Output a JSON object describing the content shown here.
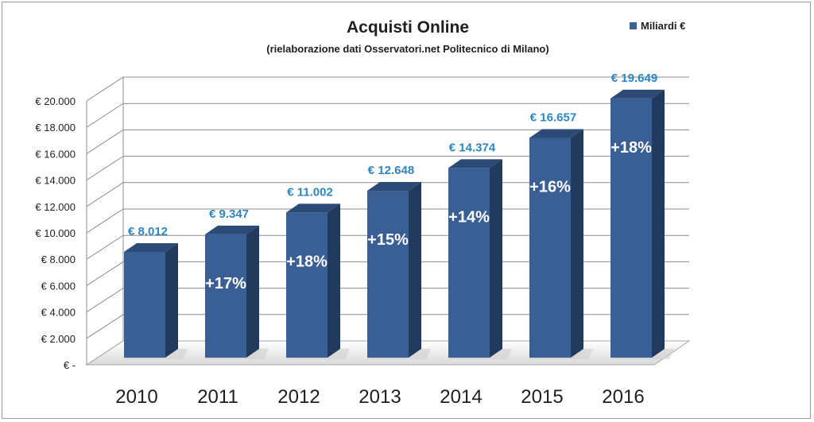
{
  "chart_data": {
    "type": "bar",
    "title": "Acquisti Online",
    "subtitle": "(rielaborazione dati  Osservatori.net Politecnico di Milano)",
    "categories": [
      "2010",
      "2011",
      "2012",
      "2013",
      "2014",
      "2015",
      "2016"
    ],
    "series": [
      {
        "name": "Miliardi €",
        "values": [
          8012,
          9347,
          11002,
          12648,
          14374,
          16657,
          19649
        ],
        "color": "#3a5f95"
      }
    ],
    "value_labels": [
      "€ 8.012",
      "€ 9.347",
      "€ 11.002",
      "€ 12.648",
      "€ 14.374",
      "€ 16.657",
      "€ 19.649"
    ],
    "growth_labels": [
      "",
      "+17%",
      "+18%",
      "+15%",
      "+14%",
      "+16%",
      "+18%"
    ],
    "y_ticks": [
      0,
      2000,
      4000,
      6000,
      8000,
      10000,
      12000,
      14000,
      16000,
      18000,
      20000
    ],
    "y_tick_labels": [
      "€ -",
      "€ 2.000",
      "€ 4.000",
      "€ 6.000",
      "€ 8.000",
      "€ 10.000",
      "€ 12.000",
      "€ 14.000",
      "€ 16.000",
      "€ 18.000",
      "€ 20.000"
    ],
    "ylim": [
      0,
      20000
    ],
    "xlabel": "",
    "ylabel": "",
    "grid": true,
    "legend_position": "top-right",
    "style": "3d-column"
  }
}
